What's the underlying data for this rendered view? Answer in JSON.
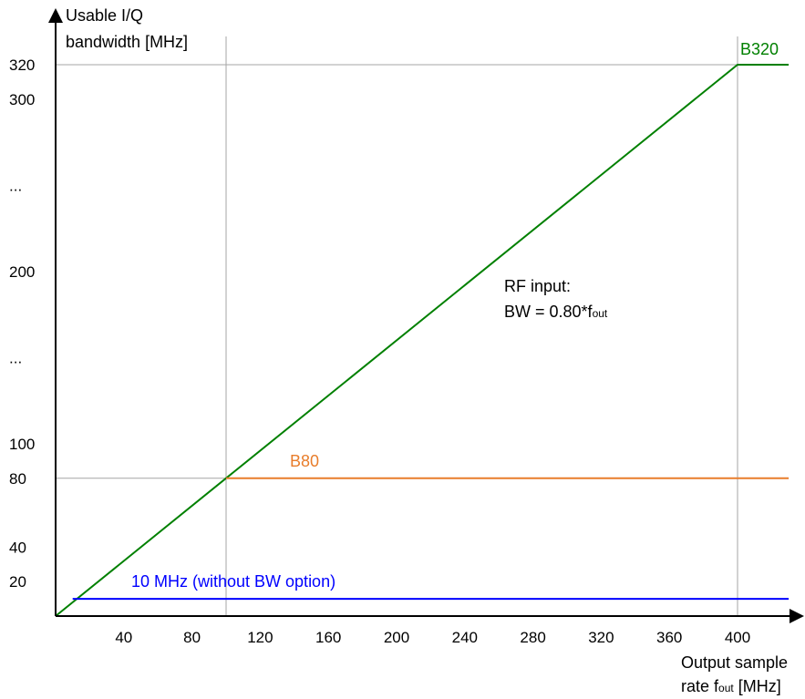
{
  "chart_data": {
    "type": "line",
    "ylabel": [
      "Usable I/Q",
      "bandwidth [MHz]"
    ],
    "xlabel": {
      "line1": "Output sample",
      "line2_prefix": "rate f",
      "line2_sub": "out",
      "line2_suffix": " [MHz]"
    },
    "xlim": [
      0,
      440
    ],
    "ylim": [
      0,
      330
    ],
    "x_ticks": [
      {
        "value": 40,
        "label": "40"
      },
      {
        "value": 80,
        "label": "80"
      },
      {
        "value": 120,
        "label": "120"
      },
      {
        "value": 160,
        "label": "160"
      },
      {
        "value": 200,
        "label": "200"
      },
      {
        "value": 240,
        "label": "240"
      },
      {
        "value": 280,
        "label": "280"
      },
      {
        "value": 320,
        "label": "320"
      },
      {
        "value": 360,
        "label": "360"
      },
      {
        "value": 400,
        "label": "400"
      }
    ],
    "y_ticks": [
      {
        "value": 20,
        "label": "20"
      },
      {
        "value": 40,
        "label": "40"
      },
      {
        "value": 80,
        "label": "80"
      },
      {
        "value": 100,
        "label": "100"
      },
      {
        "value": 150,
        "label": "..."
      },
      {
        "value": 200,
        "label": "200"
      },
      {
        "value": 250,
        "label": "..."
      },
      {
        "value": 300,
        "label": "300"
      },
      {
        "value": 320,
        "label": "320"
      }
    ],
    "reference_lines": [
      {
        "orientation": "vertical",
        "value": 100,
        "color": "#a6a6a6"
      },
      {
        "orientation": "vertical",
        "value": 400,
        "color": "#a6a6a6"
      },
      {
        "orientation": "horizontal",
        "value": 80,
        "color": "#a6a6a6",
        "x_range": [
          0,
          100
        ]
      },
      {
        "orientation": "horizontal",
        "value": 320,
        "color": "#a6a6a6",
        "x_range": [
          0,
          400
        ]
      }
    ],
    "series": [
      {
        "name": "B320",
        "color": "#008000",
        "x": [
          0,
          400,
          430
        ],
        "y": [
          0,
          320,
          320
        ]
      },
      {
        "name": "B80",
        "color": "#e87d2b",
        "x": [
          100,
          430
        ],
        "y": [
          80,
          80
        ]
      },
      {
        "name": "10 MHz (without BW option)",
        "color": "#0000ff",
        "x": [
          10,
          430
        ],
        "y": [
          10,
          10
        ]
      }
    ],
    "annotations": {
      "rf_line1": "RF input:",
      "rf_line2_prefix": "BW = 0.80*f",
      "rf_line2_sub": "out"
    }
  }
}
